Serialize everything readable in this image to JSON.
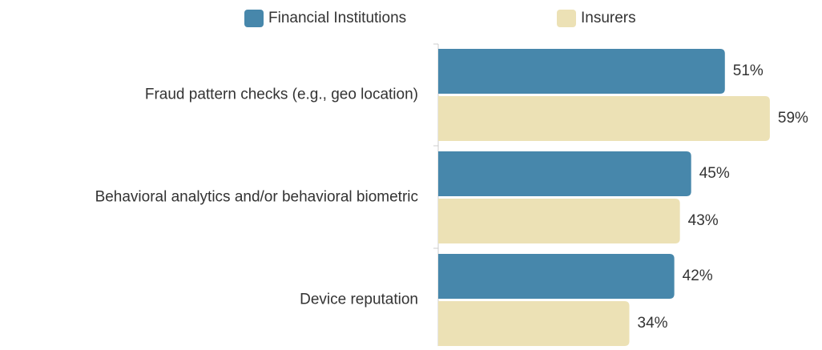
{
  "chart_data": {
    "type": "barh",
    "categories": [
      "Fraud pattern checks (e.g., geo location)",
      "Behavioral analytics and/or behavioral biometric",
      "Device reputation"
    ],
    "series": [
      {
        "name": "Financial Institutions",
        "color": "#4787ab",
        "values": [
          51,
          45,
          42
        ],
        "value_labels": [
          "51%",
          "45%",
          "42%"
        ]
      },
      {
        "name": "Insurers",
        "color": "#ece1b5",
        "values": [
          59,
          43,
          34
        ],
        "value_labels": [
          "59%",
          "43%",
          "34%"
        ]
      }
    ],
    "xlim": [
      0,
      65
    ],
    "legend": "top"
  }
}
